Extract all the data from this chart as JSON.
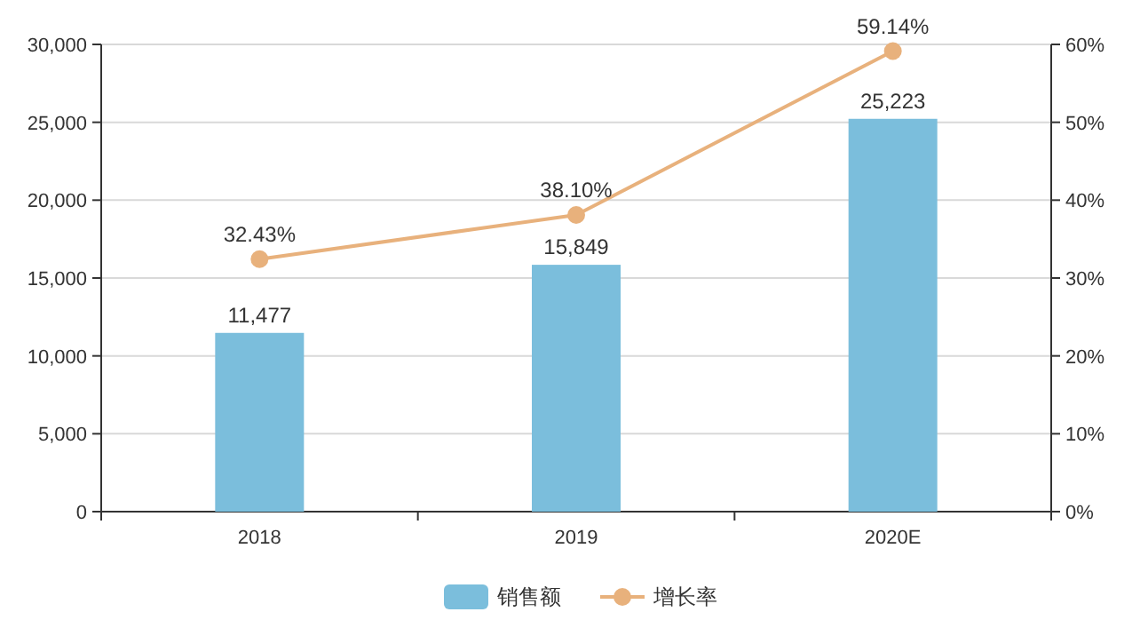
{
  "chart_data": {
    "type": "bar",
    "categories": [
      "2018",
      "2019",
      "2020E"
    ],
    "series": [
      {
        "name": "销售额",
        "color": "#7bbedc",
        "values": [
          11477,
          15849,
          25223
        ],
        "value_labels": [
          "11,477",
          "15,849",
          "25,223"
        ]
      },
      {
        "name": "增长率",
        "type": "line",
        "axis": "y2",
        "color": "#e8b17c",
        "values": [
          32.43,
          38.1,
          59.14
        ],
        "value_labels": [
          "32.43%",
          "38.10%",
          "59.14%"
        ]
      }
    ],
    "ylim": [
      0,
      30000
    ],
    "yticks": [
      0,
      {
        "value": 5000,
        "label": "5,000"
      },
      {
        "value": 10000,
        "label": "10,000"
      },
      {
        "value": 15000,
        "label": "15,000"
      },
      {
        "value": 20000,
        "label": "20,000"
      },
      {
        "value": 25000,
        "label": "25,000"
      },
      {
        "value": 30000,
        "label": "30,000"
      }
    ],
    "y2lim": [
      0,
      60
    ],
    "y2ticks": [
      {
        "value": 0,
        "label": "0%"
      },
      {
        "value": 10,
        "label": "10%"
      },
      {
        "value": 20,
        "label": "20%"
      },
      {
        "value": 30,
        "label": "30%"
      },
      {
        "value": 40,
        "label": "40%"
      },
      {
        "value": 50,
        "label": "50%"
      },
      {
        "value": 60,
        "label": "60%"
      }
    ],
    "grid": "y",
    "legend": "bottom",
    "marker": "circle"
  }
}
